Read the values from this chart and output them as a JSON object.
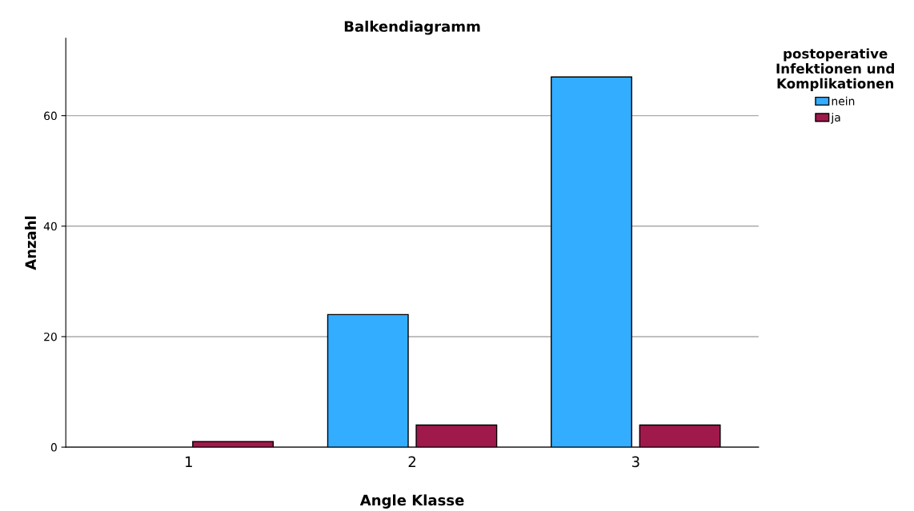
{
  "chart_data": {
    "type": "bar",
    "title": "Balkendiagramm",
    "xlabel": "Angle Klasse",
    "ylabel": "Anzahl",
    "legend_title": "postoperative\nInfektionen und\nKomplikationen",
    "categories": [
      "1",
      "2",
      "3"
    ],
    "series": [
      {
        "name": "nein",
        "color": "#33adff",
        "values": [
          0,
          24,
          67
        ]
      },
      {
        "name": "ja",
        "color": "#a0194b",
        "values": [
          1,
          4,
          4
        ]
      }
    ],
    "ylim": [
      0,
      74
    ],
    "yticks": [
      0,
      20,
      40,
      60
    ],
    "grid": "y",
    "legend": "top right"
  }
}
